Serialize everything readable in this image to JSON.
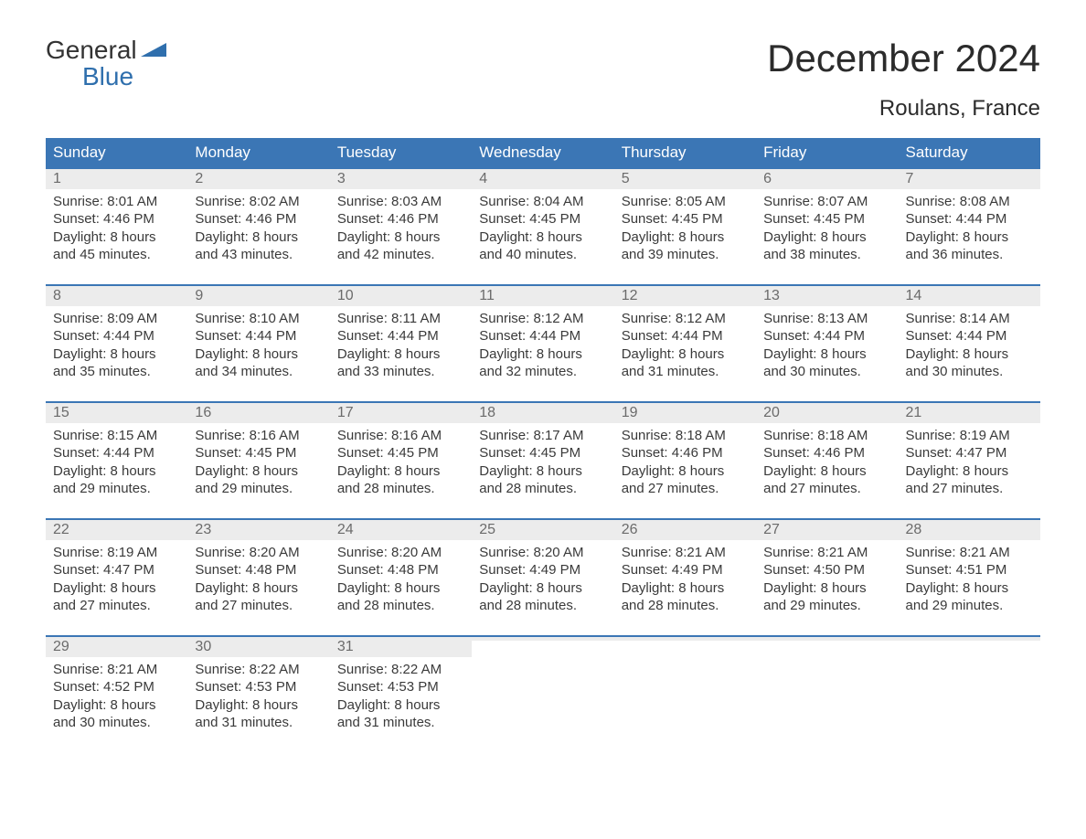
{
  "logo": {
    "textTop": "General",
    "textBottom": "Blue",
    "iconColor": "#2f6fad"
  },
  "title": "December 2024",
  "location": "Roulans, France",
  "colors": {
    "headerBg": "#3b76b5",
    "headerText": "#ffffff",
    "dayNumberBg": "#ececec",
    "dayNumberText": "#6b6b6b",
    "bodyText": "#3a3a3a",
    "weekBorder": "#3b76b5",
    "background": "#ffffff"
  },
  "dayHeaders": [
    "Sunday",
    "Monday",
    "Tuesday",
    "Wednesday",
    "Thursday",
    "Friday",
    "Saturday"
  ],
  "weeks": [
    [
      {
        "n": "1",
        "sunrise": "Sunrise: 8:01 AM",
        "sunset": "Sunset: 4:46 PM",
        "day1": "Daylight: 8 hours",
        "day2": "and 45 minutes."
      },
      {
        "n": "2",
        "sunrise": "Sunrise: 8:02 AM",
        "sunset": "Sunset: 4:46 PM",
        "day1": "Daylight: 8 hours",
        "day2": "and 43 minutes."
      },
      {
        "n": "3",
        "sunrise": "Sunrise: 8:03 AM",
        "sunset": "Sunset: 4:46 PM",
        "day1": "Daylight: 8 hours",
        "day2": "and 42 minutes."
      },
      {
        "n": "4",
        "sunrise": "Sunrise: 8:04 AM",
        "sunset": "Sunset: 4:45 PM",
        "day1": "Daylight: 8 hours",
        "day2": "and 40 minutes."
      },
      {
        "n": "5",
        "sunrise": "Sunrise: 8:05 AM",
        "sunset": "Sunset: 4:45 PM",
        "day1": "Daylight: 8 hours",
        "day2": "and 39 minutes."
      },
      {
        "n": "6",
        "sunrise": "Sunrise: 8:07 AM",
        "sunset": "Sunset: 4:45 PM",
        "day1": "Daylight: 8 hours",
        "day2": "and 38 minutes."
      },
      {
        "n": "7",
        "sunrise": "Sunrise: 8:08 AM",
        "sunset": "Sunset: 4:44 PM",
        "day1": "Daylight: 8 hours",
        "day2": "and 36 minutes."
      }
    ],
    [
      {
        "n": "8",
        "sunrise": "Sunrise: 8:09 AM",
        "sunset": "Sunset: 4:44 PM",
        "day1": "Daylight: 8 hours",
        "day2": "and 35 minutes."
      },
      {
        "n": "9",
        "sunrise": "Sunrise: 8:10 AM",
        "sunset": "Sunset: 4:44 PM",
        "day1": "Daylight: 8 hours",
        "day2": "and 34 minutes."
      },
      {
        "n": "10",
        "sunrise": "Sunrise: 8:11 AM",
        "sunset": "Sunset: 4:44 PM",
        "day1": "Daylight: 8 hours",
        "day2": "and 33 minutes."
      },
      {
        "n": "11",
        "sunrise": "Sunrise: 8:12 AM",
        "sunset": "Sunset: 4:44 PM",
        "day1": "Daylight: 8 hours",
        "day2": "and 32 minutes."
      },
      {
        "n": "12",
        "sunrise": "Sunrise: 8:12 AM",
        "sunset": "Sunset: 4:44 PM",
        "day1": "Daylight: 8 hours",
        "day2": "and 31 minutes."
      },
      {
        "n": "13",
        "sunrise": "Sunrise: 8:13 AM",
        "sunset": "Sunset: 4:44 PM",
        "day1": "Daylight: 8 hours",
        "day2": "and 30 minutes."
      },
      {
        "n": "14",
        "sunrise": "Sunrise: 8:14 AM",
        "sunset": "Sunset: 4:44 PM",
        "day1": "Daylight: 8 hours",
        "day2": "and 30 minutes."
      }
    ],
    [
      {
        "n": "15",
        "sunrise": "Sunrise: 8:15 AM",
        "sunset": "Sunset: 4:44 PM",
        "day1": "Daylight: 8 hours",
        "day2": "and 29 minutes."
      },
      {
        "n": "16",
        "sunrise": "Sunrise: 8:16 AM",
        "sunset": "Sunset: 4:45 PM",
        "day1": "Daylight: 8 hours",
        "day2": "and 29 minutes."
      },
      {
        "n": "17",
        "sunrise": "Sunrise: 8:16 AM",
        "sunset": "Sunset: 4:45 PM",
        "day1": "Daylight: 8 hours",
        "day2": "and 28 minutes."
      },
      {
        "n": "18",
        "sunrise": "Sunrise: 8:17 AM",
        "sunset": "Sunset: 4:45 PM",
        "day1": "Daylight: 8 hours",
        "day2": "and 28 minutes."
      },
      {
        "n": "19",
        "sunrise": "Sunrise: 8:18 AM",
        "sunset": "Sunset: 4:46 PM",
        "day1": "Daylight: 8 hours",
        "day2": "and 27 minutes."
      },
      {
        "n": "20",
        "sunrise": "Sunrise: 8:18 AM",
        "sunset": "Sunset: 4:46 PM",
        "day1": "Daylight: 8 hours",
        "day2": "and 27 minutes."
      },
      {
        "n": "21",
        "sunrise": "Sunrise: 8:19 AM",
        "sunset": "Sunset: 4:47 PM",
        "day1": "Daylight: 8 hours",
        "day2": "and 27 minutes."
      }
    ],
    [
      {
        "n": "22",
        "sunrise": "Sunrise: 8:19 AM",
        "sunset": "Sunset: 4:47 PM",
        "day1": "Daylight: 8 hours",
        "day2": "and 27 minutes."
      },
      {
        "n": "23",
        "sunrise": "Sunrise: 8:20 AM",
        "sunset": "Sunset: 4:48 PM",
        "day1": "Daylight: 8 hours",
        "day2": "and 27 minutes."
      },
      {
        "n": "24",
        "sunrise": "Sunrise: 8:20 AM",
        "sunset": "Sunset: 4:48 PM",
        "day1": "Daylight: 8 hours",
        "day2": "and 28 minutes."
      },
      {
        "n": "25",
        "sunrise": "Sunrise: 8:20 AM",
        "sunset": "Sunset: 4:49 PM",
        "day1": "Daylight: 8 hours",
        "day2": "and 28 minutes."
      },
      {
        "n": "26",
        "sunrise": "Sunrise: 8:21 AM",
        "sunset": "Sunset: 4:49 PM",
        "day1": "Daylight: 8 hours",
        "day2": "and 28 minutes."
      },
      {
        "n": "27",
        "sunrise": "Sunrise: 8:21 AM",
        "sunset": "Sunset: 4:50 PM",
        "day1": "Daylight: 8 hours",
        "day2": "and 29 minutes."
      },
      {
        "n": "28",
        "sunrise": "Sunrise: 8:21 AM",
        "sunset": "Sunset: 4:51 PM",
        "day1": "Daylight: 8 hours",
        "day2": "and 29 minutes."
      }
    ],
    [
      {
        "n": "29",
        "sunrise": "Sunrise: 8:21 AM",
        "sunset": "Sunset: 4:52 PM",
        "day1": "Daylight: 8 hours",
        "day2": "and 30 minutes."
      },
      {
        "n": "30",
        "sunrise": "Sunrise: 8:22 AM",
        "sunset": "Sunset: 4:53 PM",
        "day1": "Daylight: 8 hours",
        "day2": "and 31 minutes."
      },
      {
        "n": "31",
        "sunrise": "Sunrise: 8:22 AM",
        "sunset": "Sunset: 4:53 PM",
        "day1": "Daylight: 8 hours",
        "day2": "and 31 minutes."
      },
      {
        "n": "",
        "sunrise": "",
        "sunset": "",
        "day1": "",
        "day2": ""
      },
      {
        "n": "",
        "sunrise": "",
        "sunset": "",
        "day1": "",
        "day2": ""
      },
      {
        "n": "",
        "sunrise": "",
        "sunset": "",
        "day1": "",
        "day2": ""
      },
      {
        "n": "",
        "sunrise": "",
        "sunset": "",
        "day1": "",
        "day2": ""
      }
    ]
  ]
}
